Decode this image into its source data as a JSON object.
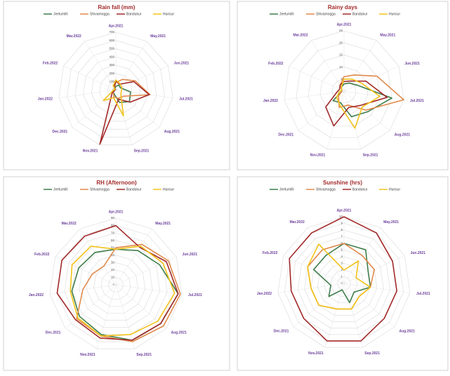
{
  "chart_data": [
    {
      "type": "radar",
      "title": "Rain fall (mm)",
      "categories": [
        "Apr.2021",
        "May.2021",
        "Jun.2021",
        "Jul.2021",
        "Aug.2021",
        "Sep.2021",
        "Nov.2021",
        "Dec.2021",
        "Jan.2022",
        "Feb.2022",
        "Mar.2022"
      ],
      "ylim": [
        0,
        700
      ],
      "yticks": [
        0,
        100,
        200,
        300,
        400,
        500,
        600,
        700
      ],
      "grid": true,
      "legend": "top",
      "series": [
        {
          "name": "Jeelumilli",
          "color": "#3e7d4a",
          "values": [
            40,
            70,
            60,
            180,
            220,
            160,
            60,
            40,
            10,
            5,
            20
          ]
        },
        {
          "name": "Shivamogga",
          "color": "#e08a4c",
          "values": [
            90,
            150,
            260,
            420,
            120,
            110,
            90,
            40,
            10,
            5,
            30
          ]
        },
        {
          "name": "Bandukur",
          "color": "#a32a2a",
          "values": [
            110,
            80,
            240,
            410,
            230,
            120,
            690,
            60,
            10,
            5,
            40
          ]
        },
        {
          "name": "Hunsur",
          "color": "#f2c21b",
          "values": [
            120,
            90,
            80,
            70,
            80,
            330,
            100,
            200,
            30,
            10,
            60
          ]
        }
      ]
    },
    {
      "type": "radar",
      "title": "Rainy days",
      "categories": [
        "Apr.2021",
        "May.2021",
        "Jun.2021",
        "Jul.2021",
        "Aug.2021",
        "Sep.2021",
        "Nov.2021",
        "Dec.2021",
        "Jan.2022",
        "Feb.2022",
        "Mar.2022"
      ],
      "ylim": [
        0,
        25
      ],
      "yticks": [
        0,
        5,
        10,
        15,
        20,
        25
      ],
      "grid": true,
      "legend": "top",
      "series": [
        {
          "name": "Jeelumilli",
          "color": "#3e7d4a",
          "values": [
            3,
            4,
            6,
            20,
            13,
            11,
            5,
            6,
            1,
            1,
            2
          ]
        },
        {
          "name": "Shivamogga",
          "color": "#e08a4c",
          "values": [
            6,
            8,
            15,
            25,
            12,
            6,
            7,
            3,
            1,
            1,
            3
          ]
        },
        {
          "name": "Bandukur",
          "color": "#a32a2a",
          "values": [
            4,
            5,
            10,
            18,
            9,
            7,
            15,
            10,
            3,
            2,
            3
          ]
        },
        {
          "name": "Hunsur",
          "color": "#f2c21b",
          "values": [
            5,
            6,
            8,
            15,
            10,
            16,
            6,
            4,
            2,
            1,
            2
          ]
        }
      ]
    },
    {
      "type": "radar",
      "title": "RH (Afternoon)",
      "categories": [
        "Apr.2021",
        "May.2021",
        "Jun.2021",
        "Jul.2021",
        "Aug.2021",
        "Sep.2021",
        "Nov.2021",
        "Dec.2021",
        "Jan.2022",
        "Feb.2022",
        "Mar.2022"
      ],
      "ylim": [
        0,
        90
      ],
      "yticks": [
        0,
        10,
        20,
        30,
        40,
        50,
        60,
        70,
        80,
        90
      ],
      "grid": true,
      "legend": "top",
      "series": [
        {
          "name": "Jeelumilli",
          "color": "#3e7d4a",
          "values": [
            48,
            55,
            65,
            85,
            80,
            78,
            70,
            65,
            60,
            55,
            52
          ]
        },
        {
          "name": "Shivamogga",
          "color": "#e08a4c",
          "values": [
            50,
            65,
            78,
            88,
            85,
            80,
            72,
            70,
            45,
            35,
            30
          ]
        },
        {
          "name": "Bandukur",
          "color": "#a32a2a",
          "values": [
            80,
            60,
            75,
            85,
            80,
            78,
            75,
            72,
            80,
            80,
            78
          ]
        },
        {
          "name": "Hunsur",
          "color": "#f2c21b",
          "values": [
            48,
            62,
            70,
            80,
            75,
            70,
            72,
            68,
            62,
            65,
            62
          ]
        }
      ]
    },
    {
      "type": "radar",
      "title": "Sunshine (hrs)",
      "categories": [
        "Apr.2021",
        "May.2021",
        "Jun.2021",
        "Jul.2021",
        "Aug.2021",
        "Sep.2021",
        "Nov.2021",
        "Dec.2021",
        "Jan.2022",
        "Feb.2022",
        "Mar.2022"
      ],
      "ylim": [
        0,
        10
      ],
      "yticks": [
        0,
        1,
        2,
        3,
        4,
        5,
        6,
        7,
        8,
        9,
        10
      ],
      "grid": true,
      "legend": "top",
      "series": [
        {
          "name": "Jeelumilli",
          "color": "#3e7d4a",
          "values": [
            6,
            6,
            4,
            4,
            2,
            3,
            1,
            3,
            2,
            5,
            5
          ]
        },
        {
          "name": "Shivamogga",
          "color": "#e08a4c",
          "values": [
            6,
            5,
            5,
            4,
            3,
            4,
            4,
            5,
            5,
            6,
            6
          ]
        },
        {
          "name": "Bandukur",
          "color": "#a32a2a",
          "values": [
            10,
            9,
            8,
            8,
            8,
            9,
            9,
            8,
            8,
            9,
            9
          ]
        },
        {
          "name": "Hunsur",
          "color": "#f2c21b",
          "values": [
            2,
            4,
            2,
            4,
            3,
            4,
            4,
            5,
            5,
            6,
            7
          ]
        }
      ]
    }
  ]
}
